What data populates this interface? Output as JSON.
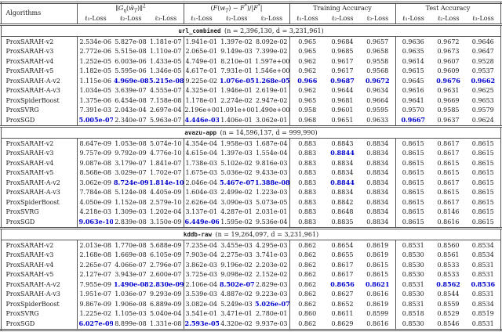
{
  "highlight_color": "#0000cd",
  "header": {
    "algorithms": "Algorithms",
    "groups": [
      "&#8741;<i>G<sub>&#951;</sub></i>(<i>w&#771;<sub>T</sub></i>)&#8741;<sup>2</sup>",
      "(<i>F</i>(<i>w<sub>T</sub></i>) &#8722; <i>F</i><sup>*</sup>)/|<i>F</i><sup>*</sup>|",
      "Training Accuracy",
      "Test Accuracy"
    ],
    "subheaders": [
      "ℓ₁-Loss",
      "ℓ₂-Loss",
      "ℓ₃-Loss"
    ]
  },
  "sections": [
    {
      "dataset": "url_combined",
      "stats": "(n = 2,396,130, d = 3,231,961)",
      "rows": [
        {
          "algorithm": "ProxSARAH-v2",
          "values": [
            "2.534e-06",
            "5.827e-08",
            "1.181e-07",
            "1.941e-01",
            "1.397e-02",
            "8.092e-02",
            "0.965",
            "0.9684",
            "0.9657",
            "0.9636",
            "0.9672",
            "0.9646"
          ],
          "highlights": []
        },
        {
          "algorithm": "ProxSARAH-v3",
          "values": [
            "2.772e-06",
            "5.515e-08",
            "1.110e-07",
            "2.065e-01",
            "9.149e-03",
            "7.399e-02",
            "0.965",
            "0.9685",
            "0.9658",
            "0.9635",
            "0.9673",
            "0.9647"
          ],
          "highlights": []
        },
        {
          "algorithm": "ProxSARAH-v4",
          "values": [
            "1.252e-05",
            "6.003e-06",
            "1.433e-05",
            "4.749e-01",
            "8.210e-01",
            "1.597e+00",
            "0.962",
            "0.9617",
            "0.9558",
            "0.9614",
            "0.9607",
            "0.9528"
          ],
          "highlights": []
        },
        {
          "algorithm": "ProxSARAH-v5",
          "values": [
            "1.182e-05",
            "5.595e-06",
            "1.346e-05",
            "4.617e-01",
            "7.931e-01",
            "1.546e+00",
            "0.962",
            "0.9617",
            "0.9568",
            "0.9615",
            "0.9609",
            "0.9537"
          ],
          "highlights": []
        },
        {
          "algorithm": "ProxSARAH-A-v2",
          "values": [
            "1.115e-06",
            "4.969e-08",
            "5.215e-08",
            "9.225e-02",
            "1.076e-05",
            "1.268e-05",
            "0.966",
            "0.9687",
            "0.9672",
            "0.9645",
            "0.9676",
            "0.9662"
          ],
          "highlights": [
            1,
            2,
            4,
            5,
            6,
            7,
            8,
            10,
            11
          ]
        },
        {
          "algorithm": "ProxSARAH-A-v3",
          "values": [
            "1.034e-05",
            "3.639e-07",
            "4.555e-07",
            "4.325e-01",
            "1.946e-01",
            "2.619e-01",
            "0.962",
            "0.9644",
            "0.9634",
            "0.9616",
            "0.9631",
            "0.9625"
          ],
          "highlights": []
        },
        {
          "algorithm": "ProxSpiderBoost",
          "values": [
            "1.375e-06",
            "6.454e-08",
            "7.158e-08",
            "1.178e-01",
            "2.274e-02",
            "2.947e-02",
            "0.965",
            "0.9681",
            "0.9664",
            "0.9641",
            "0.9669",
            "0.9653"
          ],
          "highlights": []
        },
        {
          "algorithm": "ProxSVRG",
          "values": [
            "7.391e-03",
            "2.043e-04",
            "2.697e-04",
            "2.196e+00",
            "1.091e+00",
            "1.490e+00",
            "0.958",
            "0.9601",
            "0.9595",
            "0.9570",
            "0.9585",
            "0.9579"
          ],
          "highlights": []
        },
        {
          "algorithm": "ProxSGD",
          "values": [
            "5.005e-07",
            "2.340e-07",
            "5.963e-07",
            "4.446e-03",
            "1.406e-01",
            "3.062e-01",
            "0.968",
            "0.9651",
            "0.9633",
            "0.9667",
            "0.9637",
            "0.9624"
          ],
          "highlights": [
            0,
            3,
            9
          ]
        }
      ]
    },
    {
      "dataset": "avazu-app",
      "stats": "(n = 14,596,137, d = 999,990)",
      "rows": [
        {
          "algorithm": "ProxSARAH-v2",
          "values": [
            "8.647e-09",
            "1.053e-08",
            "5.074e-10",
            "4.354e-04",
            "1.958e-03",
            "1.687e-04",
            "0.883",
            "0.8843",
            "0.8834",
            "0.8615",
            "0.8617",
            "0.8615"
          ],
          "highlights": []
        },
        {
          "algorithm": "ProxSARAH-v3",
          "values": [
            "9.757e-09",
            "9.792e-09",
            "4.776e-10",
            "4.615e-04",
            "1.397e-03",
            "1.554e-04",
            "0.883",
            "0.8844",
            "0.8834",
            "0.8615",
            "0.8617",
            "0.8615"
          ],
          "highlights": [
            7
          ]
        },
        {
          "algorithm": "ProxSARAH-v4",
          "values": [
            "9.087e-08",
            "3.179e-07",
            "1.841e-07",
            "1.738e-03",
            "5.102e-02",
            "9.816e-03",
            "0.883",
            "0.8834",
            "0.8834",
            "0.8615",
            "0.8615",
            "0.8615"
          ],
          "highlights": []
        },
        {
          "algorithm": "ProxSARAH-v5",
          "values": [
            "8.568e-08",
            "3.029e-07",
            "1.702e-07",
            "1.675e-03",
            "5.036e-02",
            "9.433e-03",
            "0.883",
            "0.8834",
            "0.8834",
            "0.8615",
            "0.8615",
            "0.8615"
          ],
          "highlights": []
        },
        {
          "algorithm": "ProxSARAH-A-v2",
          "values": [
            "3.062e-09",
            "8.724e-09",
            "1.814e-10",
            "2.046e-04",
            "5.467e-07",
            "1.388e-08",
            "0.883",
            "0.8844",
            "0.8834",
            "0.8615",
            "0.8617",
            "0.8615"
          ],
          "highlights": [
            1,
            2,
            4,
            5,
            7
          ]
        },
        {
          "algorithm": "ProxSARAH-A-v3",
          "values": [
            "7.784e-08",
            "5.124e-08",
            "4.405e-09",
            "1.604e-03",
            "2.499e-02",
            "1.223e-03",
            "0.883",
            "0.8834",
            "0.8834",
            "0.8615",
            "0.8615",
            "0.8615"
          ],
          "highlights": []
        },
        {
          "algorithm": "ProxSpiderBoost",
          "values": [
            "4.050e-09",
            "1.152e-08",
            "2.579e-10",
            "2.626e-04",
            "3.090e-03",
            "5.073e-05",
            "0.883",
            "0.8842",
            "0.8834",
            "0.8615",
            "0.8617",
            "0.8615"
          ],
          "highlights": []
        },
        {
          "algorithm": "ProxSVRG",
          "values": [
            "4.218e-03",
            "1.309e-03",
            "1.202e-04",
            "3.137e-01",
            "4.287e-01",
            "2.031e-01",
            "0.883",
            "0.8648",
            "0.8834",
            "0.8615",
            "0.8146",
            "0.8615"
          ],
          "highlights": []
        },
        {
          "algorithm": "ProxSGD",
          "values": [
            "9.063e-10",
            "2.839e-08",
            "3.150e-09",
            "6.449e-06",
            "1.595e-02",
            "9.536e-04",
            "0.883",
            "0.8835",
            "0.8834",
            "0.8615",
            "0.8616",
            "0.8615"
          ],
          "highlights": [
            0,
            3
          ]
        }
      ]
    },
    {
      "dataset": "kddb-raw",
      "stats": "(n = 19,264,097, d = 3,231,961)",
      "rows": [
        {
          "algorithm": "ProxSARAH-v2",
          "values": [
            "2.013e-08",
            "1.770e-08",
            "5.688e-09",
            "7.235e-04",
            "3.455e-03",
            "4.295e-03",
            "0.862",
            "0.8654",
            "0.8619",
            "0.8531",
            "0.8560",
            "0.8534"
          ],
          "highlights": []
        },
        {
          "algorithm": "ProxSARAH-v3",
          "values": [
            "2.168e-08",
            "1.669e-08",
            "6.105e-09",
            "7.903e-04",
            "2.275e-03",
            "3.741e-03",
            "0.862",
            "0.8655",
            "0.8619",
            "0.8530",
            "0.8561",
            "0.8534"
          ],
          "highlights": []
        },
        {
          "algorithm": "ProxSARAH-v4",
          "values": [
            "2.265e-07",
            "4.066e-07",
            "2.796e-07",
            "3.862e-03",
            "9.196e-02",
            "2.203e-02",
            "0.862",
            "0.8617",
            "0.8615",
            "0.8530",
            "0.8533",
            "0.8531"
          ],
          "highlights": []
        },
        {
          "algorithm": "ProxSARAH-v5",
          "values": [
            "2.127e-07",
            "3.943e-07",
            "2.600e-07",
            "3.725e-03",
            "9.098e-02",
            "2.152e-02",
            "0.862",
            "0.8617",
            "0.8615",
            "0.8530",
            "0.8533",
            "0.8531"
          ],
          "highlights": []
        },
        {
          "algorithm": "ProxSARAH-A-v2",
          "values": [
            "7.955e-09",
            "1.490e-08",
            "2.830e-09",
            "2.106e-04",
            "8.502e-07",
            "2.829e-03",
            "0.862",
            "0.8656",
            "0.8621",
            "0.8531",
            "0.8562",
            "0.8536"
          ],
          "highlights": [
            1,
            2,
            4,
            7,
            8,
            10,
            11
          ]
        },
        {
          "algorithm": "ProxSARAH-A-v3",
          "values": [
            "1.951e-07",
            "1.036e-07",
            "9.293e-09",
            "3.539e-03",
            "4.887e-02",
            "9.223e-03",
            "0.862",
            "0.8627",
            "0.8616",
            "0.8530",
            "0.8544",
            "0.8531"
          ],
          "highlights": []
        },
        {
          "algorithm": "ProxSpiderBoost",
          "values": [
            "9.867e-09",
            "1.906e-08",
            "6.889e-09",
            "3.082e-04",
            "5.249e-03",
            "5.026e-07",
            "0.862",
            "0.8652",
            "0.8619",
            "0.8531",
            "0.8559",
            "0.8534"
          ],
          "highlights": [
            5
          ]
        },
        {
          "algorithm": "ProxSVRG",
          "values": [
            "1.225e-02",
            "1.105e-03",
            "5.040e-04",
            "3.541e-01",
            "3.471e-01",
            "2.780e-01",
            "0.860",
            "0.8611",
            "0.8599",
            "0.8518",
            "0.8529",
            "0.8519"
          ],
          "highlights": []
        },
        {
          "algorithm": "ProxSGD",
          "values": [
            "6.027e-09",
            "8.899e-08",
            "1.331e-08",
            "2.593e-05",
            "4.320e-02",
            "9.937e-03",
            "0.862",
            "0.8629",
            "0.8616",
            "0.8530",
            "0.8546",
            "0.8531"
          ],
          "highlights": [
            0,
            3
          ]
        }
      ]
    }
  ]
}
